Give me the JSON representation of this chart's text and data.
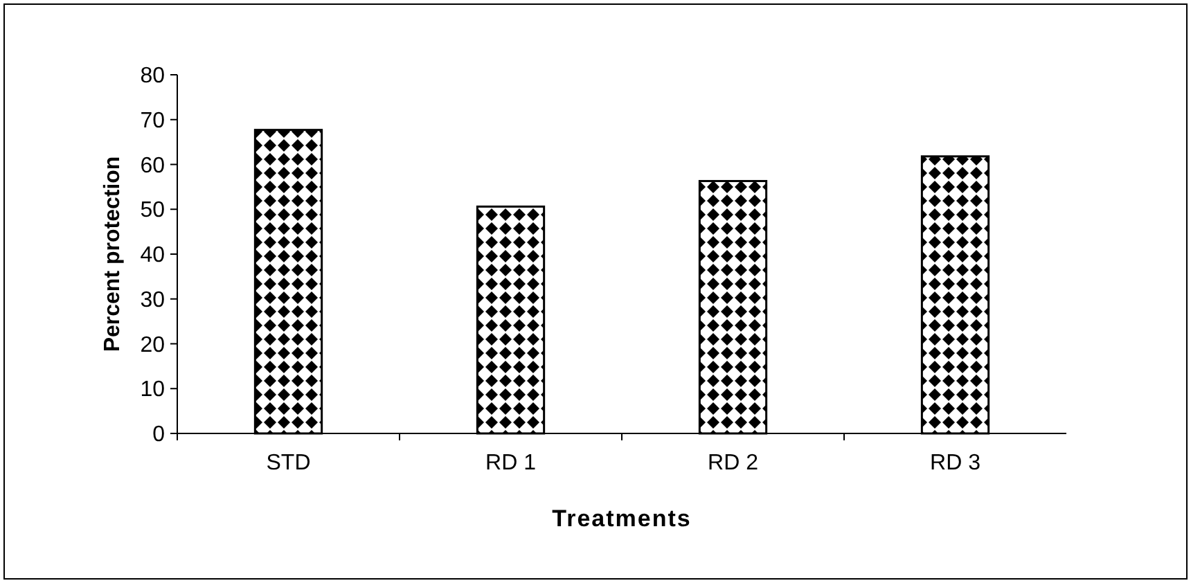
{
  "chart_data": {
    "type": "bar",
    "xlabel": "Treatments",
    "ylabel": "Percent protection",
    "categories": [
      "STD",
      "RD 1",
      "RD 2",
      "RD 3"
    ],
    "values": [
      67.7,
      50.6,
      56.3,
      61.8
    ],
    "color": "#000000",
    "ylim": [
      0,
      80
    ],
    "yticks": [
      0,
      10,
      20,
      30,
      40,
      50,
      60,
      70,
      80
    ],
    "grid": false
  }
}
